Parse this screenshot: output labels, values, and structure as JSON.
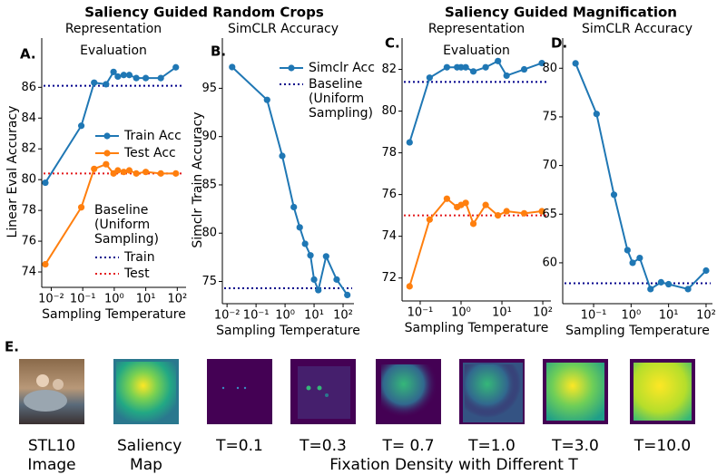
{
  "headers": [
    "Saliency Guided Random Crops",
    "Saliency Guided Magnification"
  ],
  "chart_data": [
    {
      "type": "line",
      "label": "A.",
      "title": "Representation Evaluation",
      "xlabel": "Sampling Temperature",
      "ylabel": "Linear Eval Accuracy",
      "xscale": "log",
      "x": [
        0.0065,
        0.09,
        0.23,
        0.55,
        0.95,
        1.3,
        2,
        3,
        5,
        10,
        30,
        90
      ],
      "series": [
        {
          "name": "Train Acc",
          "color": "#1f77b4",
          "values": [
            79.8,
            83.5,
            86.3,
            86.2,
            87.0,
            86.7,
            86.8,
            86.8,
            86.6,
            86.6,
            86.6,
            87.3
          ]
        },
        {
          "name": "Test Acc",
          "color": "#ff7f0e",
          "values": [
            74.5,
            78.2,
            80.7,
            81.0,
            80.4,
            80.6,
            80.5,
            80.6,
            80.4,
            80.5,
            80.4,
            80.4
          ]
        }
      ],
      "baseline_title": "Baseline (Uniform Sampling)",
      "baselines": [
        {
          "name": "Train",
          "color": "#00008b",
          "value": 86.1
        },
        {
          "name": "Test",
          "color": "#e31a1c",
          "value": 80.4
        }
      ],
      "xlim": [
        0.005,
        190
      ],
      "ylim": [
        73,
        89.2
      ],
      "xticks": [
        {
          "value": 0.01,
          "label": "10⁻²"
        },
        {
          "value": 0.1,
          "label": "10⁻¹"
        },
        {
          "value": 1,
          "label": "10⁰"
        },
        {
          "value": 10,
          "label": "10¹"
        },
        {
          "value": 100,
          "label": "10²"
        }
      ],
      "yticks": [
        74,
        76,
        78,
        80,
        82,
        84,
        86
      ]
    },
    {
      "type": "line",
      "label": "B.",
      "title": "SimCLR Accuracy",
      "xlabel": "Sampling Temperature",
      "ylabel": "Simclr Train Accuracy",
      "xscale": "log",
      "x": [
        0.015,
        0.24,
        0.8,
        2,
        3.2,
        4.9,
        7.5,
        10,
        14,
        26,
        60,
        140
      ],
      "series": [
        {
          "name": "Simclr Acc",
          "color": "#1f77b4",
          "values": [
            97.2,
            93.8,
            88.0,
            82.7,
            80.6,
            78.9,
            77.7,
            75.2,
            74.1,
            77.6,
            75.2,
            73.6
          ]
        }
      ],
      "baselines": [
        {
          "name": "Baseline (Uniform Sampling)",
          "color": "#00008b",
          "value": 74.3
        }
      ],
      "xlim": [
        0.0069,
        237
      ],
      "ylim": [
        72.7,
        100.2
      ],
      "xticks": [
        {
          "value": 0.01,
          "label": "10⁻²"
        },
        {
          "value": 0.1,
          "label": "10⁻¹"
        },
        {
          "value": 1,
          "label": "10⁰"
        },
        {
          "value": 10,
          "label": "10¹"
        },
        {
          "value": 100,
          "label": "10²"
        }
      ],
      "yticks": [
        75,
        80,
        85,
        90,
        95
      ]
    },
    {
      "type": "line",
      "label": "C.",
      "title": "Representation Evaluation",
      "xlabel": "Sampling Temperature",
      "xscale": "log",
      "x": [
        0.055,
        0.17,
        0.45,
        0.8,
        1,
        1.3,
        2,
        4,
        8,
        13,
        35,
        95
      ],
      "series": [
        {
          "color": "#1f77b4",
          "values": [
            78.5,
            81.6,
            82.1,
            82.1,
            82.1,
            82.1,
            81.9,
            82.1,
            82.4,
            81.7,
            82.0,
            82.3
          ]
        },
        {
          "color": "#ff7f0e",
          "values": [
            71.6,
            74.8,
            75.8,
            75.4,
            75.5,
            75.6,
            74.6,
            75.5,
            75.0,
            75.2,
            75.1,
            75.2
          ]
        }
      ],
      "baselines": [
        {
          "color": "#00008b",
          "value": 81.4
        },
        {
          "color": "#e31a1c",
          "value": 75.0
        }
      ],
      "xlim": [
        0.036,
        158
      ],
      "ylim": [
        70.9,
        83.5
      ],
      "xticks": [
        {
          "value": 0.1,
          "label": "10⁻¹"
        },
        {
          "value": 1,
          "label": "10⁰"
        },
        {
          "value": 10,
          "label": "10¹"
        },
        {
          "value": 100,
          "label": "10²"
        }
      ],
      "yticks": [
        72,
        74,
        76,
        78,
        80,
        82
      ]
    },
    {
      "type": "line",
      "label": "D.",
      "title": "SimCLR Accuracy",
      "xlabel": "Sampling Temperature",
      "xscale": "log",
      "x": [
        0.033,
        0.12,
        0.35,
        0.8,
        1.1,
        1.7,
        3.3,
        6.3,
        10,
        33,
        100
      ],
      "series": [
        {
          "color": "#1f77b4",
          "values": [
            80.5,
            75.3,
            67.0,
            61.3,
            60.0,
            60.5,
            57.3,
            58.0,
            57.8,
            57.3,
            59.2
          ]
        }
      ],
      "baselines": [
        {
          "color": "#00008b",
          "value": 57.9
        }
      ],
      "xlim": [
        0.015,
        148
      ],
      "ylim": [
        55.8,
        83.1
      ],
      "xticks": [
        {
          "value": 0.1,
          "label": "10⁻¹"
        },
        {
          "value": 1,
          "label": "10⁰"
        },
        {
          "value": 10,
          "label": "10¹"
        },
        {
          "value": 100,
          "label": "10²"
        }
      ],
      "yticks": [
        60,
        65,
        70,
        75,
        80
      ]
    }
  ],
  "panel_e": {
    "label": "E.",
    "captions": [
      "STL10 Image",
      "Saliency Map",
      "T=0.1",
      "T=0.3",
      "T= 0.7",
      "T=1.0",
      "T=3.0",
      "T=10.0"
    ],
    "caption": "Fixation Density with Different T"
  }
}
